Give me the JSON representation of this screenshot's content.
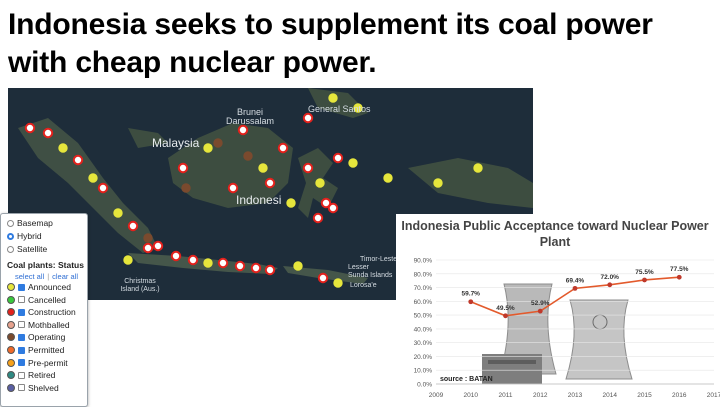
{
  "slide": {
    "title": "Indonesia seeks to supplement its coal power with cheap nuclear power."
  },
  "map": {
    "labels": [
      {
        "id": "brunei",
        "text": "Brunei\nDarussalam"
      },
      {
        "id": "malaysia",
        "text": "Malaysia"
      },
      {
        "id": "general_santos",
        "text": "General Santos"
      },
      {
        "id": "indonesia",
        "text": "Indonesi"
      },
      {
        "id": "christmas",
        "text": "Christmas Island (Aus.)"
      },
      {
        "id": "timor",
        "text": "Timor-Leste"
      },
      {
        "id": "lesser",
        "text": "Lesser"
      },
      {
        "id": "sunda",
        "text": "Sunda Islands"
      },
      {
        "id": "lorosa",
        "text": "Lorosa'e"
      }
    ]
  },
  "layers": {
    "basemaps": [
      {
        "label": "Basemap",
        "selected": false
      },
      {
        "label": "Hybrid",
        "selected": true
      },
      {
        "label": "Satellite",
        "selected": false
      }
    ],
    "status_header": "Coal plants: Status",
    "select_all": "select all",
    "separator": "|",
    "clear_all": "clear all",
    "statuses": [
      {
        "label": "Announced",
        "color": "#e6e63c",
        "checked": true
      },
      {
        "label": "Cancelled",
        "color": "#39c93c",
        "checked": false
      },
      {
        "label": "Construction",
        "color": "#e3211c",
        "checked": true
      },
      {
        "label": "Mothballed",
        "color": "#e7a38f",
        "checked": false
      },
      {
        "label": "Operating",
        "color": "#7a4a2e",
        "checked": true
      },
      {
        "label": "Permitted",
        "color": "#f06a2a",
        "checked": true
      },
      {
        "label": "Pre-permit",
        "color": "#f7a21b",
        "checked": true
      },
      {
        "label": "Retired",
        "color": "#2e8a83",
        "checked": false
      },
      {
        "label": "Shelved",
        "color": "#5a5fa3",
        "checked": false
      }
    ]
  },
  "chart_data": {
    "type": "line",
    "title": "Indonesia Public Acceptance toward Nuclear Power Plant",
    "x": [
      2010,
      2011,
      2012,
      2013,
      2014,
      2015,
      2016
    ],
    "series": [
      {
        "values": [
          59.7,
          49.5,
          52.9,
          69.4,
          72.0,
          75.5,
          77.5
        ]
      }
    ],
    "data_labels": [
      "59.7%",
      "49.5%",
      "52.9%",
      "69.4%",
      "72.0%",
      "75.5%",
      "77.5%"
    ],
    "x_ticks": [
      "2009",
      "2010",
      "2011",
      "2012",
      "2013",
      "2014",
      "2015",
      "2016",
      "2017"
    ],
    "y_ticks": [
      "0.0%",
      "10.0%",
      "20.0%",
      "30.0%",
      "40.0%",
      "50.0%",
      "60.0%",
      "70.0%",
      "80.0%",
      "90.0%"
    ],
    "xlim": [
      2009,
      2017
    ],
    "ylim": [
      0,
      90
    ],
    "grid": true,
    "line_color": "#e35a2c",
    "source": "source : BATAN"
  }
}
